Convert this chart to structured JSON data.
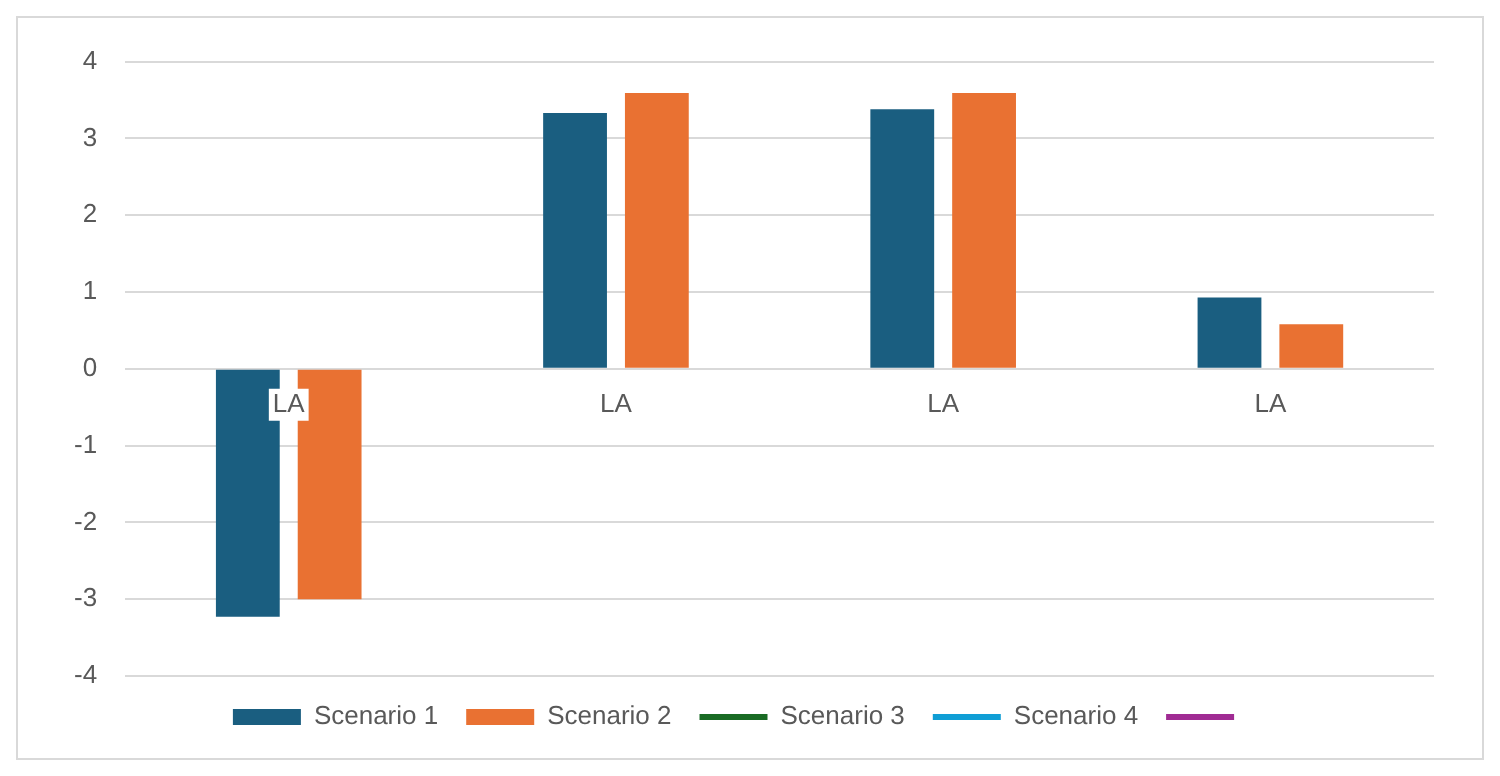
{
  "chart_data": {
    "type": "bar",
    "categories": [
      "LA",
      "LA",
      "LA",
      "LA"
    ],
    "series": [
      {
        "name": "Scenario 1",
        "color": "#1a5e80",
        "values": [
          -3.23,
          3.33,
          3.38,
          0.93
        ]
      },
      {
        "name": "Scenario 2",
        "color": "#e97132",
        "values": [
          -3.0,
          3.59,
          3.59,
          0.58
        ]
      },
      {
        "name": "Scenario 3",
        "type": "line",
        "color": "#196b24",
        "values": [
          null,
          null,
          null,
          null
        ]
      },
      {
        "name": "Scenario 4",
        "type": "line",
        "color": "#0f9ed5",
        "values": [
          null,
          null,
          null,
          null
        ]
      },
      {
        "type": "line",
        "color": "#a02b93",
        "values": [
          null,
          null,
          null,
          null
        ]
      }
    ],
    "ylim": [
      -4,
      4
    ],
    "yticks": [
      -4,
      -3,
      -2,
      -1,
      0,
      1,
      2,
      3,
      4
    ],
    "grid": "y",
    "legend": "bottom"
  }
}
